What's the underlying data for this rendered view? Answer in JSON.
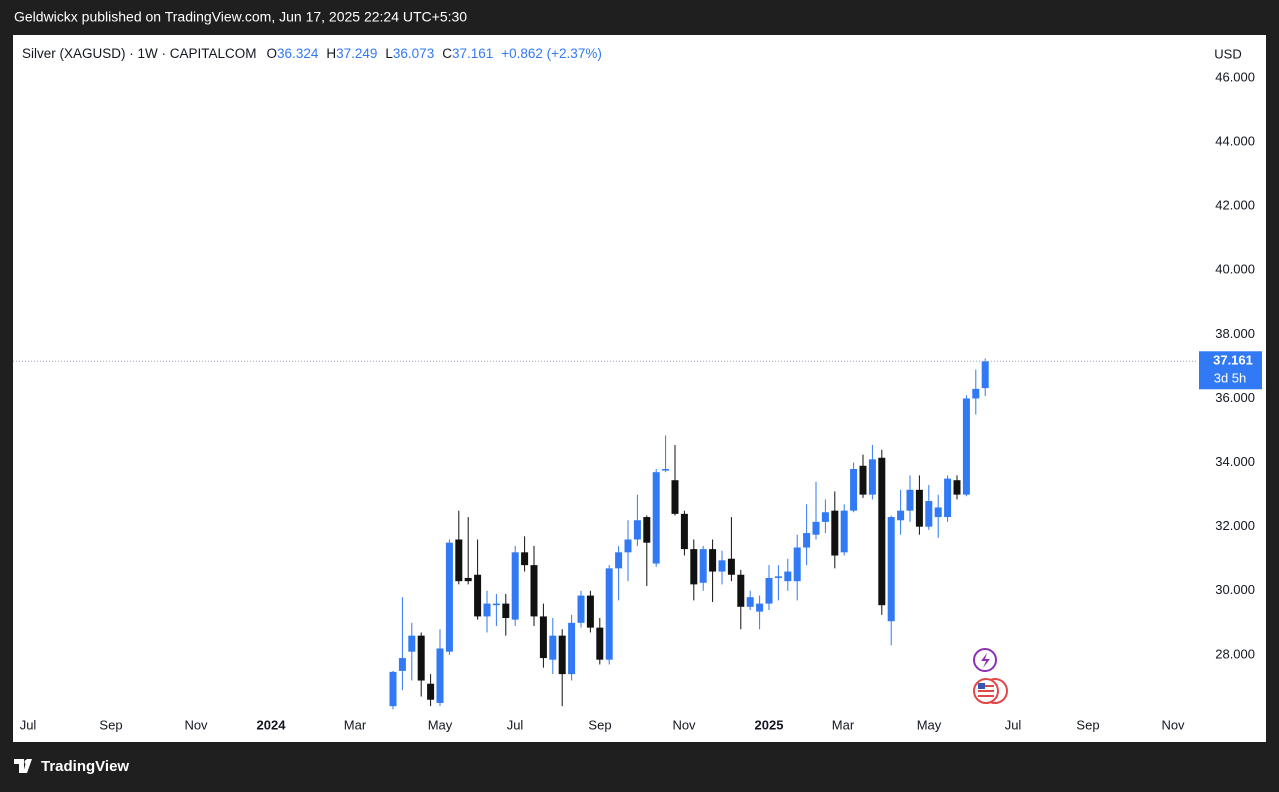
{
  "chart_data": {
    "type": "candlestick",
    "published": "Geldwickx published on TradingView.com, Jun 17, 2025 22:24 UTC+5:30",
    "title": "Silver (XAGUSD) · 1W · CAPITALCOM",
    "ohlc_labels": [
      "O",
      "H",
      "L",
      "C"
    ],
    "change": "+0.862 (+2.37%)",
    "currency": "USD",
    "countdown": "3d 5h",
    "brand": "TradingView",
    "up_color": "#3179f5",
    "down_color": "#111111",
    "x_labels": [
      "Jul",
      "Sep",
      "Nov",
      "2024",
      "Mar",
      "May",
      "Jul",
      "Sep",
      "Nov",
      "2025",
      "Mar",
      "May",
      "Jul",
      "Sep",
      "Nov"
    ],
    "ylim": [
      26.28,
      47.31
    ],
    "yticks": [
      {
        "value": 28,
        "label": "28.000"
      },
      {
        "value": 30,
        "label": "30.000"
      },
      {
        "value": 32,
        "label": "32.000"
      },
      {
        "value": 34,
        "label": "34.000"
      },
      {
        "value": 36,
        "label": "36.000"
      },
      {
        "value": 38,
        "label": "38.000"
      },
      {
        "value": 40,
        "label": "40.000"
      },
      {
        "value": 42,
        "label": "42.000"
      },
      {
        "value": 44,
        "label": "44.000"
      },
      {
        "value": 46,
        "label": "46.000"
      }
    ],
    "open": [
      26.4,
      27.5,
      28.1,
      28.6,
      27.1,
      26.5,
      28.1,
      31.6,
      30.4,
      30.5,
      29.2,
      29.55,
      29.6,
      29.1,
      31.2,
      30.8,
      29.2,
      27.85,
      28.6,
      27.4,
      29.0,
      29.85,
      28.85,
      27.85,
      30.7,
      31.2,
      31.6,
      32.3,
      30.85,
      33.75,
      33.45,
      32.4,
      31.3,
      30.25,
      31.3,
      30.6,
      31.0,
      30.5,
      29.5,
      29.35,
      29.6,
      30.4,
      30.3,
      30.3,
      31.35,
      31.75,
      32.15,
      32.5,
      31.2,
      32.5,
      33.9,
      33.0,
      34.15,
      29.05,
      32.2,
      32.5,
      33.15,
      32.0,
      32.3,
      32.3,
      33.45,
      33.0,
      36.0,
      36.324
    ],
    "high": [
      27.5,
      29.8,
      29.0,
      28.7,
      27.4,
      28.8,
      31.6,
      32.5,
      32.3,
      31.6,
      30.0,
      29.9,
      29.9,
      31.4,
      31.7,
      31.4,
      29.6,
      29.15,
      28.8,
      29.25,
      30.0,
      30.0,
      29.15,
      30.8,
      31.4,
      32.2,
      33.0,
      32.35,
      33.8,
      34.85,
      34.55,
      32.5,
      31.6,
      31.4,
      31.6,
      31.25,
      32.3,
      30.65,
      30.0,
      29.85,
      30.8,
      30.8,
      31.0,
      31.75,
      32.7,
      33.4,
      32.85,
      33.1,
      32.7,
      34.0,
      34.25,
      34.55,
      34.4,
      32.35,
      33.15,
      33.6,
      33.6,
      33.3,
      33.0,
      33.6,
      33.6,
      36.1,
      36.9,
      37.249
    ],
    "low": [
      26.3,
      26.9,
      27.2,
      26.7,
      26.4,
      26.4,
      28.0,
      30.2,
      30.2,
      29.1,
      28.7,
      28.9,
      28.6,
      28.9,
      30.6,
      28.9,
      27.6,
      27.4,
      26.4,
      27.2,
      28.85,
      28.7,
      27.7,
      27.7,
      29.7,
      30.3,
      31.4,
      30.15,
      30.75,
      33.7,
      32.35,
      31.1,
      29.7,
      30.0,
      29.65,
      30.2,
      30.3,
      28.8,
      29.4,
      28.8,
      29.4,
      29.7,
      30.0,
      29.7,
      30.8,
      31.6,
      31.8,
      30.7,
      31.1,
      32.45,
      32.9,
      32.85,
      29.25,
      28.3,
      31.75,
      32.15,
      31.75,
      31.9,
      31.65,
      32.15,
      32.85,
      32.95,
      35.5,
      36.073
    ],
    "close": [
      27.47,
      27.9,
      28.6,
      27.2,
      26.6,
      28.2,
      31.5,
      30.3,
      30.3,
      29.2,
      29.6,
      29.6,
      29.15,
      31.2,
      30.8,
      29.2,
      27.9,
      28.6,
      27.4,
      29.0,
      29.85,
      28.85,
      27.85,
      30.7,
      31.2,
      31.6,
      32.2,
      31.5,
      33.7,
      33.8,
      32.4,
      31.3,
      30.2,
      31.3,
      30.6,
      30.95,
      30.5,
      29.5,
      29.8,
      29.6,
      30.4,
      30.45,
      30.6,
      31.35,
      31.8,
      32.15,
      32.45,
      31.1,
      32.5,
      33.8,
      33.0,
      34.1,
      29.55,
      32.3,
      32.5,
      33.15,
      32.0,
      32.8,
      32.6,
      33.5,
      33.0,
      36.0,
      36.3,
      37.161
    ]
  }
}
